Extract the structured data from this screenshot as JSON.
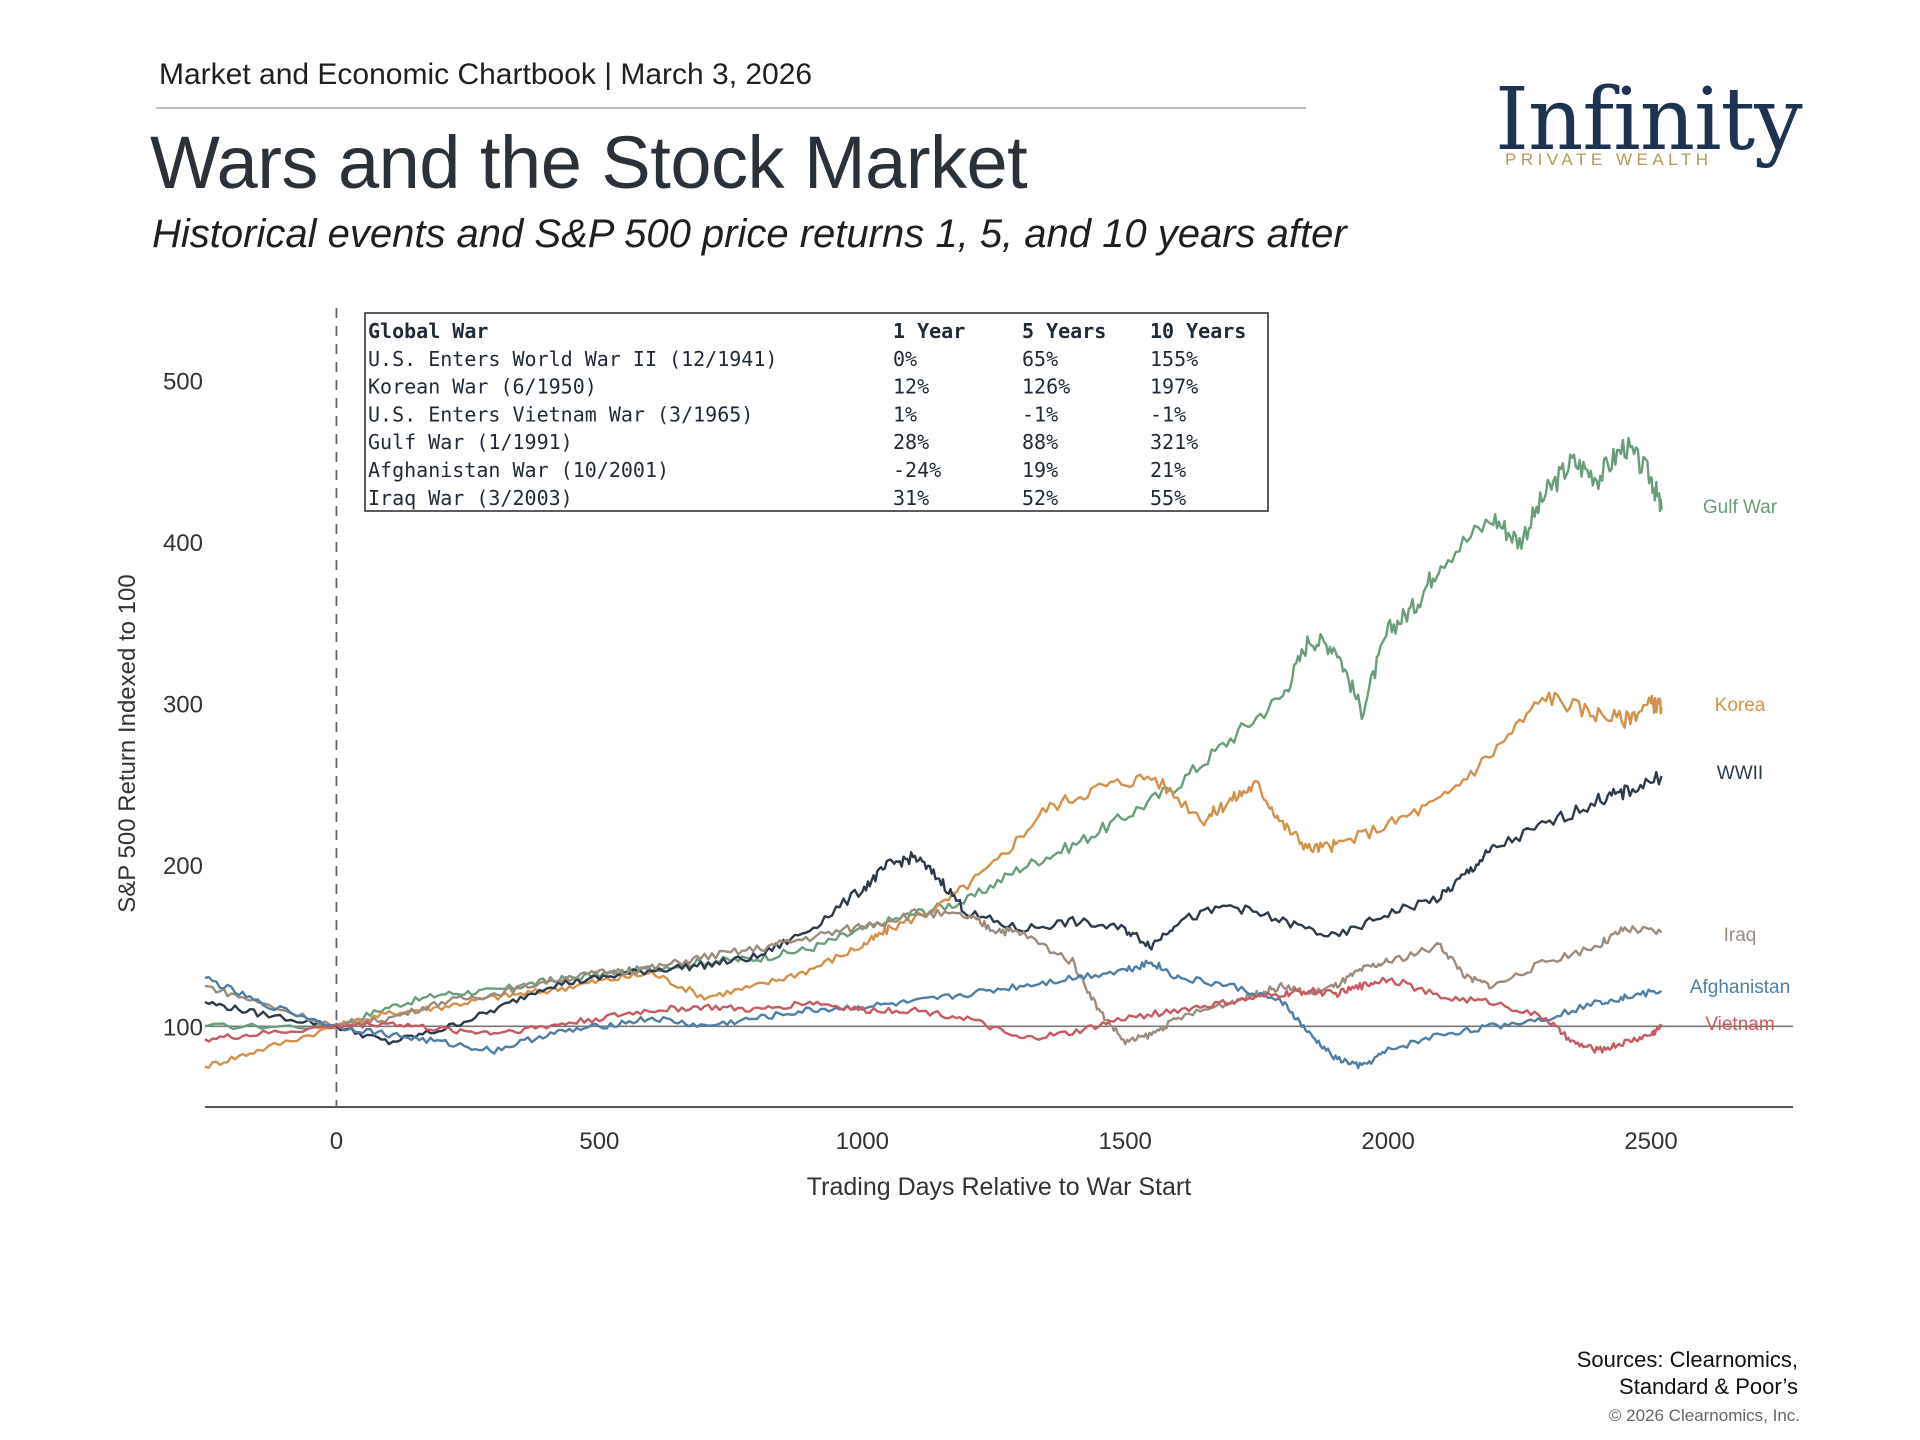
{
  "header": {
    "publication": "Market and Economic Chartbook | March 3, 2026",
    "title": "Wars and the Stock Market",
    "subtitle": "Historical events and S&P 500 price returns 1, 5, and 10 years after"
  },
  "logo": {
    "word": "Infinity",
    "sub": "PRIVATE WEALTH",
    "color": "#1e3350",
    "accent": "#b09a55"
  },
  "footer": {
    "sources_line1": "Sources: Clearnomics,",
    "sources_line2": "Standard & Poor’s",
    "copyright": "© 2026 Clearnomics, Inc."
  },
  "chart_data": {
    "type": "line",
    "title": "",
    "xlabel": "Trading Days Relative to War Start",
    "ylabel": "S&P 500 Return Indexed to 100",
    "xlim": [
      -250,
      2770
    ],
    "ylim": [
      50,
      550
    ],
    "xticks": [
      0,
      500,
      1000,
      1500,
      2000,
      2500
    ],
    "yticks": [
      100,
      200,
      300,
      400,
      500
    ],
    "reference_line_y": 100,
    "vertical_dashed_x": 0,
    "grid": false,
    "legend": "line-end labels",
    "series": [
      {
        "name": "Gulf War",
        "color": "#6a9e7a",
        "points": [
          [
            -250,
            100
          ],
          [
            0,
            100
          ],
          [
            100,
            112
          ],
          [
            200,
            120
          ],
          [
            300,
            122
          ],
          [
            400,
            128
          ],
          [
            500,
            132
          ],
          [
            600,
            136
          ],
          [
            700,
            140
          ],
          [
            800,
            142
          ],
          [
            900,
            148
          ],
          [
            1000,
            160
          ],
          [
            1100,
            170
          ],
          [
            1200,
            178
          ],
          [
            1300,
            198
          ],
          [
            1400,
            212
          ],
          [
            1500,
            230
          ],
          [
            1600,
            250
          ],
          [
            1700,
            278
          ],
          [
            1800,
            305
          ],
          [
            1850,
            340
          ],
          [
            1900,
            335
          ],
          [
            1950,
            295
          ],
          [
            2000,
            345
          ],
          [
            2050,
            360
          ],
          [
            2100,
            388
          ],
          [
            2200,
            415
          ],
          [
            2250,
            400
          ],
          [
            2300,
            430
          ],
          [
            2350,
            450
          ],
          [
            2400,
            440
          ],
          [
            2450,
            460
          ],
          [
            2500,
            440
          ],
          [
            2520,
            420
          ]
        ]
      },
      {
        "name": "Korea",
        "color": "#d4914a",
        "points": [
          [
            -250,
            75
          ],
          [
            -150,
            85
          ],
          [
            0,
            100
          ],
          [
            100,
            108
          ],
          [
            200,
            112
          ],
          [
            300,
            118
          ],
          [
            400,
            122
          ],
          [
            500,
            128
          ],
          [
            600,
            133
          ],
          [
            700,
            118
          ],
          [
            800,
            125
          ],
          [
            900,
            135
          ],
          [
            1000,
            150
          ],
          [
            1050,
            160
          ],
          [
            1150,
            175
          ],
          [
            1250,
            200
          ],
          [
            1350,
            235
          ],
          [
            1450,
            248
          ],
          [
            1550,
            255
          ],
          [
            1650,
            228
          ],
          [
            1700,
            240
          ],
          [
            1750,
            250
          ],
          [
            1800,
            225
          ],
          [
            1850,
            210
          ],
          [
            1900,
            212
          ],
          [
            2000,
            225
          ],
          [
            2100,
            240
          ],
          [
            2200,
            270
          ],
          [
            2300,
            305
          ],
          [
            2380,
            295
          ],
          [
            2450,
            290
          ],
          [
            2500,
            300
          ],
          [
            2520,
            298
          ]
        ]
      },
      {
        "name": "WWII",
        "color": "#2d3a4a",
        "points": [
          [
            -250,
            115
          ],
          [
            -150,
            108
          ],
          [
            0,
            100
          ],
          [
            100,
            90
          ],
          [
            200,
            98
          ],
          [
            300,
            110
          ],
          [
            400,
            125
          ],
          [
            500,
            130
          ],
          [
            600,
            135
          ],
          [
            700,
            138
          ],
          [
            800,
            143
          ],
          [
            900,
            160
          ],
          [
            1000,
            185
          ],
          [
            1050,
            200
          ],
          [
            1100,
            205
          ],
          [
            1150,
            190
          ],
          [
            1200,
            170
          ],
          [
            1300,
            160
          ],
          [
            1400,
            165
          ],
          [
            1500,
            160
          ],
          [
            1550,
            150
          ],
          [
            1600,
            165
          ],
          [
            1700,
            175
          ],
          [
            1800,
            165
          ],
          [
            1900,
            155
          ],
          [
            2000,
            170
          ],
          [
            2100,
            180
          ],
          [
            2150,
            195
          ],
          [
            2200,
            210
          ],
          [
            2300,
            225
          ],
          [
            2400,
            240
          ],
          [
            2450,
            245
          ],
          [
            2520,
            255
          ]
        ]
      },
      {
        "name": "Iraq",
        "color": "#9c8c7e",
        "points": [
          [
            -250,
            125
          ],
          [
            -150,
            115
          ],
          [
            0,
            100
          ],
          [
            100,
            105
          ],
          [
            200,
            115
          ],
          [
            300,
            120
          ],
          [
            400,
            128
          ],
          [
            500,
            133
          ],
          [
            600,
            136
          ],
          [
            700,
            143
          ],
          [
            800,
            148
          ],
          [
            900,
            155
          ],
          [
            1000,
            162
          ],
          [
            1100,
            170
          ],
          [
            1200,
            168
          ],
          [
            1250,
            160
          ],
          [
            1300,
            158
          ],
          [
            1400,
            140
          ],
          [
            1450,
            110
          ],
          [
            1500,
            90
          ],
          [
            1550,
            95
          ],
          [
            1600,
            105
          ],
          [
            1700,
            115
          ],
          [
            1750,
            120
          ],
          [
            1800,
            125
          ],
          [
            1850,
            120
          ],
          [
            1900,
            125
          ],
          [
            1950,
            135
          ],
          [
            2000,
            140
          ],
          [
            2100,
            150
          ],
          [
            2150,
            130
          ],
          [
            2200,
            125
          ],
          [
            2300,
            140
          ],
          [
            2400,
            150
          ],
          [
            2450,
            160
          ],
          [
            2520,
            158
          ]
        ]
      },
      {
        "name": "Afghanistan",
        "color": "#4f7fa5",
        "points": [
          [
            -250,
            130
          ],
          [
            -150,
            115
          ],
          [
            0,
            100
          ],
          [
            100,
            95
          ],
          [
            200,
            90
          ],
          [
            300,
            85
          ],
          [
            400,
            95
          ],
          [
            500,
            100
          ],
          [
            600,
            105
          ],
          [
            700,
            100
          ],
          [
            800,
            105
          ],
          [
            900,
            110
          ],
          [
            1000,
            112
          ],
          [
            1100,
            115
          ],
          [
            1200,
            120
          ],
          [
            1300,
            125
          ],
          [
            1400,
            130
          ],
          [
            1500,
            135
          ],
          [
            1550,
            140
          ],
          [
            1600,
            130
          ],
          [
            1700,
            125
          ],
          [
            1800,
            115
          ],
          [
            1850,
            95
          ],
          [
            1900,
            80
          ],
          [
            1950,
            75
          ],
          [
            2000,
            85
          ],
          [
            2100,
            95
          ],
          [
            2200,
            100
          ],
          [
            2300,
            105
          ],
          [
            2400,
            115
          ],
          [
            2450,
            118
          ],
          [
            2520,
            122
          ]
        ]
      },
      {
        "name": "Vietnam",
        "color": "#c85a63",
        "points": [
          [
            -250,
            92
          ],
          [
            -150,
            95
          ],
          [
            0,
            100
          ],
          [
            100,
            102
          ],
          [
            200,
            98
          ],
          [
            300,
            96
          ],
          [
            400,
            100
          ],
          [
            500,
            105
          ],
          [
            600,
            110
          ],
          [
            700,
            112
          ],
          [
            800,
            110
          ],
          [
            900,
            115
          ],
          [
            1000,
            110
          ],
          [
            1100,
            110
          ],
          [
            1200,
            105
          ],
          [
            1300,
            92
          ],
          [
            1400,
            96
          ],
          [
            1500,
            105
          ],
          [
            1600,
            110
          ],
          [
            1700,
            115
          ],
          [
            1800,
            120
          ],
          [
            1850,
            122
          ],
          [
            1900,
            120
          ],
          [
            1950,
            125
          ],
          [
            2000,
            130
          ],
          [
            2100,
            118
          ],
          [
            2200,
            115
          ],
          [
            2300,
            105
          ],
          [
            2350,
            90
          ],
          [
            2400,
            85
          ],
          [
            2450,
            90
          ],
          [
            2500,
            95
          ],
          [
            2520,
            100
          ]
        ]
      }
    ],
    "table": {
      "headers": [
        "Global War",
        "1 Year",
        "5 Years",
        "10 Years"
      ],
      "rows": [
        [
          "U.S. Enters World War II (12/1941)",
          "0%",
          "65%",
          "155%"
        ],
        [
          "Korean War (6/1950)",
          "12%",
          "126%",
          "197%"
        ],
        [
          "U.S. Enters Vietnam War (3/1965)",
          "1%",
          "-1%",
          "-1%"
        ],
        [
          "Gulf War (1/1991)",
          "28%",
          "88%",
          "321%"
        ],
        [
          "Afghanistan War (10/2001)",
          "-24%",
          "19%",
          "21%"
        ],
        [
          "Iraq War (3/2003)",
          "31%",
          "52%",
          "55%"
        ]
      ]
    }
  }
}
